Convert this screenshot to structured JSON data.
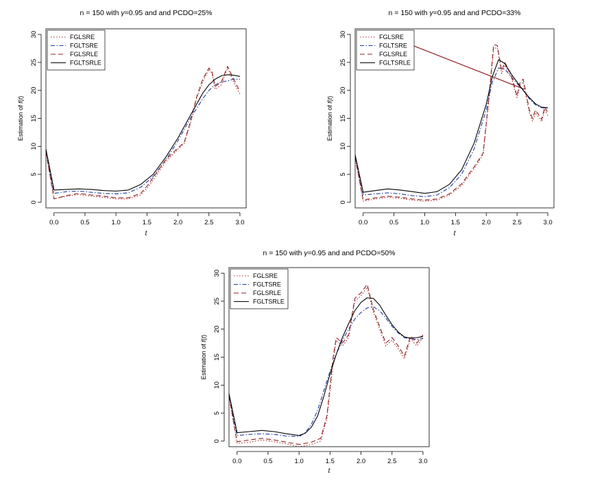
{
  "chart_data": [
    {
      "type": "line",
      "title": "n = 150  with  γ=0.95  and  and  PCDO=25%",
      "title_parts": {
        "pre": "n = 150  with  ",
        "gamma": "γ",
        "post": "=0.95  and  and  PCDO=25%"
      },
      "xlabel": "t",
      "ylabel_pre": "Estimation of ",
      "ylabel_fn": "f",
      "ylabel_paren_open": "(",
      "ylabel_var": "t",
      "ylabel_paren_close": ")",
      "xlim": [
        -0.13,
        3.1
      ],
      "ylim": [
        -1,
        31
      ],
      "xticks": [
        0.0,
        0.5,
        1.0,
        1.5,
        2.0,
        2.5,
        3.0
      ],
      "xtick_labels": [
        "0.0",
        "0.5",
        "1.0",
        "1.5",
        "2.0",
        "2.5",
        "3.0"
      ],
      "yticks": [
        0,
        5,
        10,
        15,
        20,
        25,
        30
      ],
      "ytick_labels": [
        "0",
        "5",
        "10",
        "15",
        "20",
        "25",
        "30"
      ],
      "legend_position": "top-left",
      "series": [
        {
          "name": "FGLSRE",
          "color": "#b22222",
          "dash": "dotted",
          "x": [
            -0.13,
            0.0,
            0.2,
            0.4,
            0.6,
            0.8,
            1.0,
            1.2,
            1.4,
            1.5,
            1.6,
            1.8,
            2.0,
            2.1,
            2.2,
            2.3,
            2.4,
            2.5,
            2.55,
            2.6,
            2.7,
            2.8,
            2.9,
            3.0
          ],
          "y": [
            9,
            0.6,
            1.1,
            1.4,
            1.1,
            0.9,
            0.6,
            0.6,
            1.3,
            2.5,
            4.0,
            7.2,
            9.5,
            10.5,
            14.0,
            18.5,
            21.5,
            23.8,
            23.0,
            20.2,
            21.0,
            24.0,
            21.5,
            19.3
          ]
        },
        {
          "name": "FGLTSRE",
          "color": "#1f3a9e",
          "dash": "dashdot",
          "x": [
            -0.13,
            0.0,
            0.2,
            0.4,
            0.6,
            0.8,
            1.0,
            1.2,
            1.4,
            1.6,
            1.8,
            2.0,
            2.2,
            2.4,
            2.5,
            2.6,
            2.7,
            2.8,
            2.9,
            3.0
          ],
          "y": [
            9,
            1.6,
            1.9,
            2.0,
            1.8,
            1.6,
            1.5,
            1.7,
            2.7,
            4.6,
            7.5,
            11.0,
            15.0,
            18.5,
            20.0,
            21.0,
            21.5,
            21.7,
            22.0,
            22.0
          ]
        },
        {
          "name": "FGLSRLE",
          "color": "#8b2323",
          "dash": "longdash",
          "x": [
            -0.13,
            0.0,
            0.2,
            0.4,
            0.6,
            0.8,
            1.0,
            1.2,
            1.4,
            1.5,
            1.6,
            1.8,
            2.0,
            2.1,
            2.2,
            2.3,
            2.4,
            2.5,
            2.55,
            2.6,
            2.7,
            2.8,
            2.9,
            3.0
          ],
          "y": [
            9,
            0.6,
            1.2,
            1.6,
            1.3,
            1.1,
            0.8,
            0.8,
            1.6,
            2.9,
            4.4,
            7.6,
            9.7,
            10.7,
            14.3,
            18.8,
            22.0,
            24.0,
            23.3,
            20.7,
            21.5,
            24.3,
            22.0,
            19.8
          ]
        },
        {
          "name": "FGLTSRLE",
          "color": "#000000",
          "dash": "solid",
          "x": [
            -0.13,
            0.0,
            0.2,
            0.4,
            0.6,
            0.8,
            1.0,
            1.2,
            1.4,
            1.6,
            1.8,
            2.0,
            2.2,
            2.4,
            2.5,
            2.6,
            2.7,
            2.8,
            2.9,
            3.0
          ],
          "y": [
            9.5,
            2.2,
            2.3,
            2.4,
            2.3,
            2.1,
            2.0,
            2.2,
            3.2,
            5.0,
            8.0,
            11.5,
            15.5,
            19.5,
            21.0,
            22.0,
            22.6,
            22.8,
            22.7,
            22.5
          ]
        }
      ]
    },
    {
      "type": "line",
      "title": "n = 150  with  γ=0.95  and  and  PCDO=33%",
      "title_parts": {
        "pre": "n = 150  with  ",
        "gamma": "γ",
        "post": "=0.95  and  and  PCDO=33%"
      },
      "xlabel": "t",
      "ylabel_pre": "Estimation of ",
      "ylabel_fn": "f",
      "ylabel_paren_open": "(",
      "ylabel_var": "t",
      "ylabel_paren_close": ")",
      "xlim": [
        -0.13,
        3.1
      ],
      "ylim": [
        -1,
        31
      ],
      "xticks": [
        0.0,
        0.5,
        1.0,
        1.5,
        2.0,
        2.5,
        3.0
      ],
      "xtick_labels": [
        "0.0",
        "0.5",
        "1.0",
        "1.5",
        "2.0",
        "2.5",
        "3.0"
      ],
      "yticks": [
        0,
        5,
        10,
        15,
        20,
        25,
        30
      ],
      "ytick_labels": [
        "0",
        "5",
        "10",
        "15",
        "20",
        "25",
        "30"
      ],
      "legend_position": "top-left",
      "extra_lines": [
        {
          "color": "#8b1a1a",
          "x": [
            0.3,
            2.62
          ],
          "y": [
            30.2,
            20.2
          ]
        }
      ],
      "series": [
        {
          "name": "FGLSRE",
          "color": "#b22222",
          "dash": "dotted",
          "x": [
            -0.13,
            0.0,
            0.2,
            0.4,
            0.6,
            0.8,
            1.0,
            1.2,
            1.4,
            1.6,
            1.8,
            1.95,
            2.05,
            2.12,
            2.18,
            2.25,
            2.3,
            2.4,
            2.5,
            2.55,
            2.6,
            2.7,
            2.75,
            2.8,
            2.9,
            2.95,
            3.0
          ],
          "y": [
            8,
            0.2,
            0.6,
            0.9,
            0.7,
            0.4,
            0.2,
            0.4,
            1.3,
            3.0,
            6.0,
            8.5,
            19.0,
            27.5,
            27.6,
            23.0,
            24.5,
            22.5,
            18.7,
            21.0,
            21.5,
            16.0,
            14.5,
            16.0,
            14.4,
            16.5,
            15.5
          ]
        },
        {
          "name": "FGLTSRE",
          "color": "#1f3a9e",
          "dash": "dashdot",
          "x": [
            -0.13,
            0.0,
            0.2,
            0.4,
            0.6,
            0.8,
            1.0,
            1.2,
            1.4,
            1.6,
            1.8,
            2.0,
            2.1,
            2.2,
            2.3,
            2.4,
            2.5,
            2.6,
            2.7,
            2.8,
            2.9,
            3.0
          ],
          "y": [
            8,
            1.3,
            1.5,
            1.7,
            1.5,
            1.2,
            1.0,
            1.3,
            2.6,
            5.0,
            9.5,
            16.5,
            21.5,
            24.0,
            23.8,
            22.5,
            21.2,
            20.0,
            18.5,
            17.4,
            16.9,
            16.8
          ]
        },
        {
          "name": "FGLSRLE",
          "color": "#8b2323",
          "dash": "longdash",
          "x": [
            -0.13,
            0.0,
            0.2,
            0.4,
            0.6,
            0.8,
            1.0,
            1.2,
            1.4,
            1.6,
            1.8,
            1.95,
            2.05,
            2.12,
            2.18,
            2.25,
            2.3,
            2.4,
            2.5,
            2.55,
            2.6,
            2.7,
            2.75,
            2.8,
            2.9,
            2.95,
            3.0
          ],
          "y": [
            8,
            0.4,
            0.8,
            1.1,
            0.9,
            0.6,
            0.4,
            0.6,
            1.5,
            3.3,
            6.3,
            8.8,
            19.5,
            28.2,
            28.0,
            23.5,
            25.0,
            23.0,
            19.0,
            21.5,
            22.0,
            16.5,
            15.0,
            16.5,
            14.8,
            17.0,
            16.0
          ]
        },
        {
          "name": "FGLTSRLE",
          "color": "#000000",
          "dash": "solid",
          "x": [
            -0.13,
            0.0,
            0.2,
            0.4,
            0.6,
            0.8,
            1.0,
            1.2,
            1.4,
            1.6,
            1.8,
            2.0,
            2.1,
            2.2,
            2.3,
            2.4,
            2.5,
            2.6,
            2.7,
            2.8,
            2.9,
            3.0
          ],
          "y": [
            8.5,
            1.8,
            2.1,
            2.4,
            2.2,
            1.9,
            1.6,
            1.9,
            3.2,
            5.8,
            10.5,
            17.5,
            22.5,
            25.5,
            24.8,
            23.0,
            21.5,
            20.0,
            18.7,
            17.6,
            17.0,
            16.9
          ]
        }
      ]
    },
    {
      "type": "line",
      "title": "n = 150  with  γ=0.95  and  and  PCDO=50%",
      "title_parts": {
        "pre": "n = 150  with  ",
        "gamma": "γ",
        "post": "=0.95  and  and  PCDO=50%"
      },
      "xlabel": "t",
      "ylabel_pre": "Estimation of ",
      "ylabel_fn": "f",
      "ylabel_paren_open": "(",
      "ylabel_var": "t",
      "ylabel_paren_close": ")",
      "xlim": [
        -0.13,
        3.1
      ],
      "ylim": [
        -1,
        31
      ],
      "xticks": [
        0.0,
        0.5,
        1.0,
        1.5,
        2.0,
        2.5,
        3.0
      ],
      "xtick_labels": [
        "0.0",
        "0.5",
        "1.0",
        "1.5",
        "2.0",
        "2.5",
        "3.0"
      ],
      "yticks": [
        0,
        5,
        10,
        15,
        20,
        25,
        30
      ],
      "ytick_labels": [
        "0",
        "5",
        "10",
        "15",
        "20",
        "25",
        "30"
      ],
      "legend_position": "top-left",
      "series": [
        {
          "name": "FGLSRE",
          "color": "#b22222",
          "dash": "dotted",
          "x": [
            -0.13,
            0.0,
            0.2,
            0.4,
            0.6,
            0.8,
            1.0,
            1.2,
            1.35,
            1.45,
            1.55,
            1.6,
            1.7,
            1.8,
            1.9,
            2.0,
            2.1,
            2.2,
            2.3,
            2.4,
            2.5,
            2.6,
            2.7,
            2.8,
            2.9,
            3.0
          ],
          "y": [
            8,
            -0.4,
            -0.2,
            0.2,
            -0.1,
            -0.5,
            -1.0,
            -0.6,
            0.0,
            4.0,
            14.0,
            18.0,
            17.0,
            18.5,
            25.0,
            26.0,
            27.5,
            23.0,
            20.0,
            17.0,
            18.0,
            16.5,
            14.7,
            18.3,
            17.0,
            18.5
          ]
        },
        {
          "name": "FGLTSRE",
          "color": "#1f3a9e",
          "dash": "dashdot",
          "x": [
            -0.13,
            0.0,
            0.2,
            0.4,
            0.6,
            0.8,
            1.0,
            1.1,
            1.2,
            1.3,
            1.4,
            1.5,
            1.6,
            1.7,
            1.8,
            1.9,
            2.0,
            2.1,
            2.2,
            2.3,
            2.4,
            2.5,
            2.6,
            2.7,
            2.8,
            2.9,
            3.0
          ],
          "y": [
            8,
            1.0,
            1.2,
            1.3,
            1.2,
            0.9,
            0.8,
            1.5,
            3.0,
            5.5,
            9.0,
            12.5,
            15.5,
            18.0,
            20.0,
            21.8,
            23.0,
            23.8,
            24.0,
            23.3,
            22.0,
            20.5,
            19.3,
            18.5,
            18.2,
            18.2,
            18.3
          ]
        },
        {
          "name": "FGLSRLE",
          "color": "#8b2323",
          "dash": "longdash",
          "x": [
            -0.13,
            0.0,
            0.2,
            0.4,
            0.6,
            0.8,
            1.0,
            1.2,
            1.35,
            1.45,
            1.55,
            1.6,
            1.7,
            1.8,
            1.9,
            2.0,
            2.1,
            2.2,
            2.3,
            2.4,
            2.5,
            2.6,
            2.7,
            2.8,
            2.9,
            3.0
          ],
          "y": [
            8,
            -0.1,
            0.2,
            0.5,
            0.2,
            -0.2,
            -0.6,
            -0.2,
            0.5,
            4.5,
            15.0,
            18.5,
            17.5,
            19.0,
            25.5,
            26.5,
            28.0,
            23.5,
            20.5,
            17.5,
            18.5,
            17.0,
            15.2,
            18.8,
            17.5,
            19.0
          ]
        },
        {
          "name": "FGLTSRLE",
          "color": "#000000",
          "dash": "solid",
          "x": [
            -0.13,
            0.0,
            0.2,
            0.4,
            0.6,
            0.8,
            1.0,
            1.1,
            1.2,
            1.3,
            1.4,
            1.5,
            1.6,
            1.7,
            1.8,
            1.9,
            2.0,
            2.1,
            2.2,
            2.3,
            2.4,
            2.5,
            2.6,
            2.7,
            2.8,
            2.9,
            3.0
          ],
          "y": [
            8.5,
            1.5,
            1.7,
            1.9,
            1.7,
            1.3,
            1.0,
            1.4,
            2.5,
            4.5,
            8.0,
            12.0,
            15.5,
            18.5,
            21.0,
            23.3,
            24.8,
            25.6,
            25.5,
            24.3,
            22.5,
            20.8,
            19.5,
            18.6,
            18.4,
            18.5,
            18.7
          ]
        }
      ]
    }
  ]
}
